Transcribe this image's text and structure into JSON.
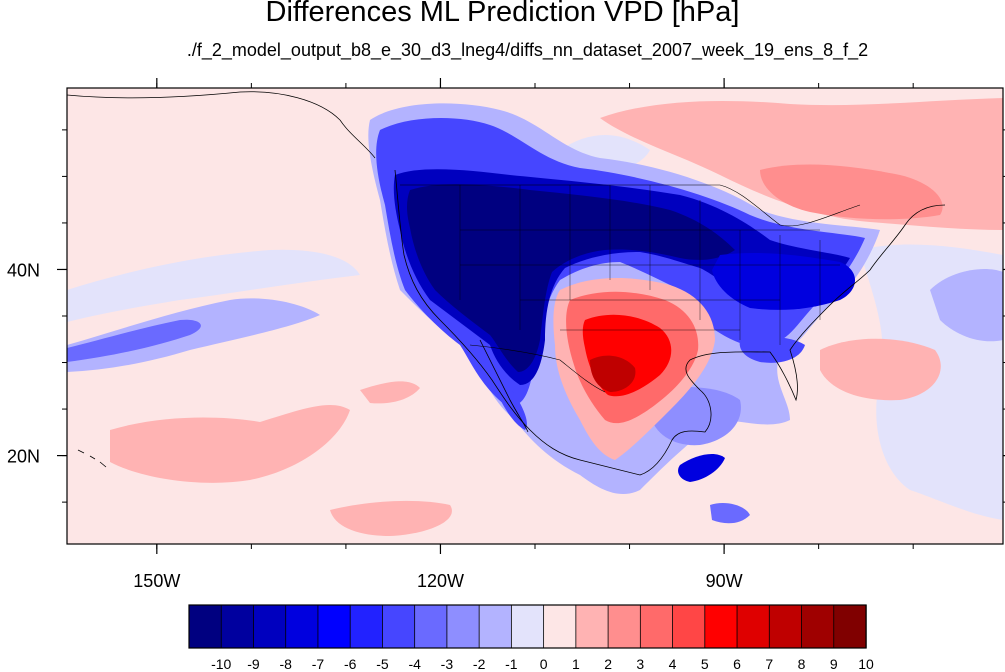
{
  "title": "Differences ML Prediction VPD [hPa]",
  "subtitle": "./f_2_model_output_b8_e_30_d3_lneg4/diffs_nn_dataset_2007_week_19_ens_8_f_2",
  "map": {
    "projection": "cylindrical equidistant",
    "lon_range": [
      -159.5,
      -60.5
    ],
    "lat_range": [
      10.5,
      59.5
    ],
    "background_value_color": "#fde6e6"
  },
  "axes": {
    "lon_ticks": [
      {
        "value": -150,
        "label": "150W"
      },
      {
        "value": -120,
        "label": "120W"
      },
      {
        "value": -90,
        "label": "90W"
      }
    ],
    "lat_ticks": [
      {
        "value": 40,
        "label": "40N"
      },
      {
        "value": 20,
        "label": "20N"
      }
    ]
  },
  "colorbar": {
    "labels": [
      "-10",
      "-9",
      "-8",
      "-7",
      "-6",
      "-5",
      "-4",
      "-3",
      "-2",
      "-1",
      "0",
      "1",
      "2",
      "3",
      "4",
      "5",
      "6",
      "7",
      "8",
      "9",
      "10"
    ],
    "colors": [
      "#000080",
      "#00009f",
      "#0000bf",
      "#0000df",
      "#0000ff",
      "#2222ff",
      "#4646ff",
      "#6a6aff",
      "#8e8eff",
      "#b3b3ff",
      "#e3e3fb",
      "#fde6e6",
      "#ffb3b3",
      "#ff8e8e",
      "#ff6a6a",
      "#ff4646",
      "#ff0000",
      "#df0000",
      "#bf0000",
      "#9f0000",
      "#800000"
    ]
  }
}
